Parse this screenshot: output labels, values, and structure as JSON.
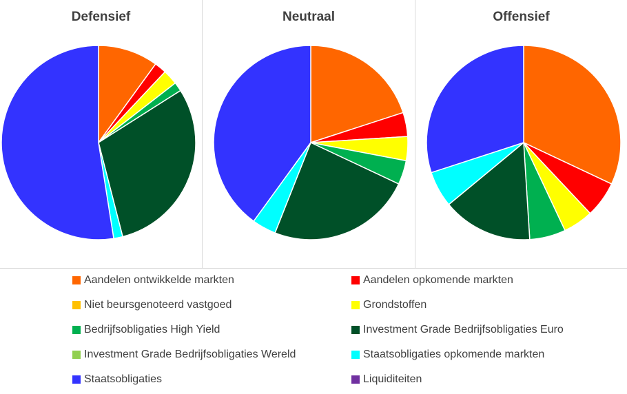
{
  "chart_data": [
    {
      "type": "pie",
      "title": "Defensief",
      "slices": [
        {
          "label": "Aandelen ontwikkelde markten",
          "value": 10
        },
        {
          "label": "Aandelen opkomende markten",
          "value": 2
        },
        {
          "label": "Niet beursgenoteerd vastgoed",
          "value": 0
        },
        {
          "label": "Grondstoffen",
          "value": 2.5
        },
        {
          "label": "Bedrijfsobligaties High Yield",
          "value": 1.5
        },
        {
          "label": "Investment Grade Bedrijfsobligaties Euro",
          "value": 30
        },
        {
          "label": "Investment Grade Bedrijfsobligaties Wereld",
          "value": 0
        },
        {
          "label": "Staatsobligaties opkomende markten",
          "value": 1.5
        },
        {
          "label": "Staatsobligaties",
          "value": 52.5
        },
        {
          "label": "Liquiditeiten",
          "value": 0
        }
      ]
    },
    {
      "type": "pie",
      "title": "Neutraal",
      "slices": [
        {
          "label": "Aandelen ontwikkelde markten",
          "value": 20
        },
        {
          "label": "Aandelen opkomende markten",
          "value": 4
        },
        {
          "label": "Niet beursgenoteerd vastgoed",
          "value": 0
        },
        {
          "label": "Grondstoffen",
          "value": 4
        },
        {
          "label": "Bedrijfsobligaties High Yield",
          "value": 4
        },
        {
          "label": "Investment Grade Bedrijfsobligaties Euro",
          "value": 24
        },
        {
          "label": "Investment Grade Bedrijfsobligaties Wereld",
          "value": 0
        },
        {
          "label": "Staatsobligaties opkomende markten",
          "value": 4
        },
        {
          "label": "Staatsobligaties",
          "value": 40
        },
        {
          "label": "Liquiditeiten",
          "value": 0
        }
      ]
    },
    {
      "type": "pie",
      "title": "Offensief",
      "slices": [
        {
          "label": "Aandelen ontwikkelde markten",
          "value": 32
        },
        {
          "label": "Aandelen opkomende markten",
          "value": 6
        },
        {
          "label": "Niet beursgenoteerd vastgoed",
          "value": 0
        },
        {
          "label": "Grondstoffen",
          "value": 5
        },
        {
          "label": "Bedrijfsobligaties High Yield",
          "value": 6
        },
        {
          "label": "Investment Grade Bedrijfsobligaties Euro",
          "value": 15
        },
        {
          "label": "Investment Grade Bedrijfsobligaties Wereld",
          "value": 0
        },
        {
          "label": "Staatsobligaties opkomende markten",
          "value": 6
        },
        {
          "label": "Staatsobligaties",
          "value": 30
        },
        {
          "label": "Liquiditeiten",
          "value": 0
        }
      ]
    }
  ],
  "legend": {
    "placement": "bottom",
    "items": [
      {
        "label": "Aandelen ontwikkelde markten",
        "color": "#FF6600"
      },
      {
        "label": "Aandelen opkomende markten",
        "color": "#FF0000"
      },
      {
        "label": "Niet beursgenoteerd vastgoed",
        "color": "#FFC000"
      },
      {
        "label": "Grondstoffen",
        "color": "#FFFF00"
      },
      {
        "label": "Bedrijfsobligaties High Yield",
        "color": "#00B050"
      },
      {
        "label": "Investment Grade Bedrijfsobligaties Euro",
        "color": "#005028"
      },
      {
        "label": "Investment Grade Bedrijfsobligaties Wereld",
        "color": "#92D050"
      },
      {
        "label": "Staatsobligaties opkomende markten",
        "color": "#00FFFF"
      },
      {
        "label": "Staatsobligaties",
        "color": "#3333FF"
      },
      {
        "label": "Liquiditeiten",
        "color": "#7030A0"
      }
    ]
  }
}
